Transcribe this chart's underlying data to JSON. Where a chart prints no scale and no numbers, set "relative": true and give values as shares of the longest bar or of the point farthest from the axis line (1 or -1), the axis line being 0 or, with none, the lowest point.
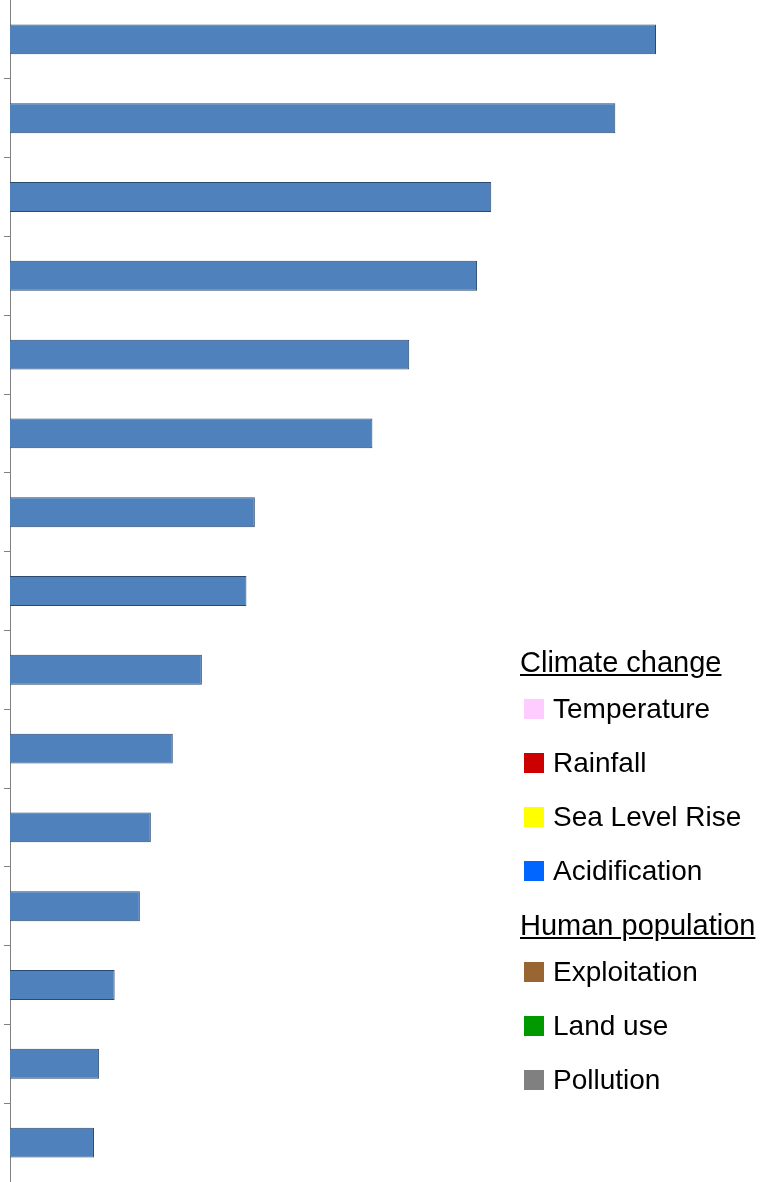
{
  "chart_data": {
    "type": "bar",
    "orientation": "horizontal",
    "relative": true,
    "categories": [
      null,
      null,
      null,
      null,
      null,
      null,
      null,
      null,
      null,
      null,
      null,
      null,
      null,
      null,
      null
    ],
    "series": [
      {
        "color": "#4f81bd",
        "values": [
          1,
          0.937,
          0.745,
          0.723,
          0.618,
          0.561,
          0.379,
          0.366,
          0.297,
          0.252,
          0.218,
          0.201,
          0.162,
          0.138,
          0.13
        ]
      }
    ],
    "annotations": [
      "Climate change",
      "Temperature",
      "Rainfall",
      "Sea Level Rise",
      "Acidification",
      "Human population",
      "Exploitation",
      "Land use",
      "Pollution"
    ]
  }
}
